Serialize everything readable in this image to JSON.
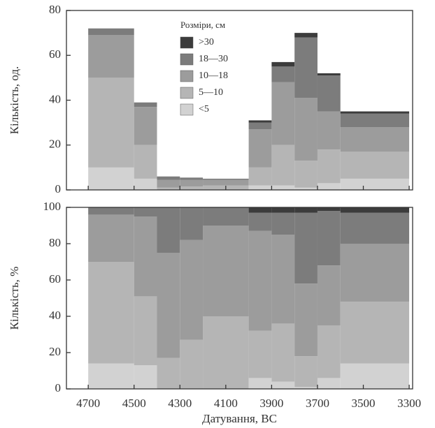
{
  "chart_data": [
    {
      "type": "histogram",
      "stacked": true,
      "ylabel": "Кількість, од.",
      "legend_title": "Розміри, см",
      "legend": "upper center",
      "bins": [
        4700,
        4500,
        4400,
        4300,
        4200,
        4000,
        3900,
        3800,
        3700,
        3600,
        3300
      ],
      "xlim": [
        4795,
        3285
      ],
      "xticks": [
        4700,
        4500,
        4300,
        4100,
        3900,
        3700,
        3500,
        3300
      ],
      "ylim": [
        0,
        80
      ],
      "yticks": [
        0,
        20,
        40,
        60,
        80
      ],
      "series": [
        {
          "name": "<5",
          "color": "#d2d2d2",
          "values": [
            10,
            5,
            0,
            0,
            0,
            2,
            2,
            1,
            3,
            5
          ]
        },
        {
          "name": "5—10",
          "color": "#b5b5b5",
          "values": [
            40,
            15,
            1,
            1.5,
            2,
            8,
            18,
            12,
            15,
            12
          ]
        },
        {
          "name": "10—18",
          "color": "#9c9c9c",
          "values": [
            19,
            17,
            3.5,
            3,
            2.5,
            17,
            28,
            28,
            17,
            11
          ]
        },
        {
          "name": "18—30",
          "color": "#7c7c7c",
          "values": [
            3,
            2,
            1.5,
            1,
            0.5,
            3,
            7,
            27,
            16,
            6
          ]
        },
        {
          "name": ">30",
          "color": "#3c3c3c",
          "values": [
            0,
            0,
            0,
            0,
            0,
            1,
            2,
            2,
            1,
            1
          ]
        }
      ]
    },
    {
      "type": "histogram",
      "stacked": true,
      "ylabel": "Кількість, %",
      "xlabel": "Датування, BC",
      "bins": [
        4700,
        4500,
        4400,
        4300,
        4200,
        4000,
        3900,
        3800,
        3700,
        3600,
        3300
      ],
      "xlim": [
        4795,
        3285
      ],
      "xticks": [
        4700,
        4500,
        4300,
        4100,
        3900,
        3700,
        3500,
        3300
      ],
      "ylim": [
        0,
        100
      ],
      "yticks": [
        0,
        20,
        40,
        60,
        80,
        100
      ],
      "series": [
        {
          "color": "#d2d2d2",
          "values": [
            14,
            13,
            0,
            0,
            0,
            6,
            4,
            1,
            6,
            14
          ]
        },
        {
          "color": "#b5b5b5",
          "values": [
            56,
            38,
            17,
            27,
            40,
            26,
            32,
            17,
            29,
            34
          ]
        },
        {
          "color": "#9c9c9c",
          "values": [
            26,
            44,
            58,
            55,
            50,
            55,
            49,
            40,
            33,
            32
          ]
        },
        {
          "color": "#7c7c7c",
          "values": [
            4,
            5,
            25,
            18,
            10,
            10,
            12,
            39,
            30,
            17
          ]
        },
        {
          "color": "#3c3c3c",
          "values": [
            0,
            0,
            0,
            0,
            0,
            3,
            3,
            3,
            2,
            3
          ]
        }
      ]
    }
  ]
}
